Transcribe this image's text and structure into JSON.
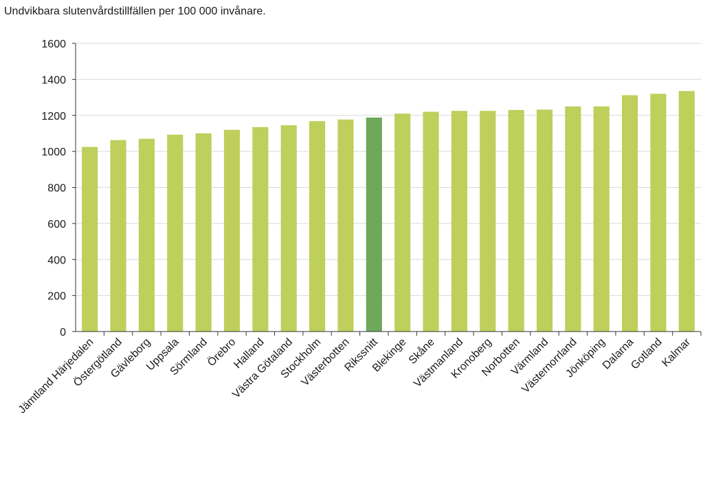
{
  "chart_data": {
    "type": "bar",
    "title": "Undvikbara slutenvårdstillfällen per 100 000 invånare.",
    "xlabel": "",
    "ylabel": "",
    "ylim": [
      0,
      1600
    ],
    "yticks": [
      0,
      200,
      400,
      600,
      800,
      1000,
      1200,
      1400,
      1600
    ],
    "grid": true,
    "categories": [
      "Jämtland Härjedalen",
      "Östergötland",
      "Gävleborg",
      "Uppsala",
      "Sörmland",
      "Örebro",
      "Halland",
      "Västra Götaland",
      "Stockholm",
      "Västerbotten",
      "Rikssnitt",
      "Blekinge",
      "Skåne",
      "Västmanland",
      "Kronoberg",
      "Norbotten",
      "Värmland",
      "Västernorrland",
      "Jönköping",
      "Dalarna",
      "Gotland",
      "Kalmar"
    ],
    "values": [
      1025,
      1063,
      1070,
      1093,
      1100,
      1120,
      1135,
      1145,
      1168,
      1177,
      1188,
      1210,
      1220,
      1225,
      1225,
      1230,
      1232,
      1250,
      1250,
      1312,
      1320,
      1335
    ],
    "colors": {
      "default": "#bfcf5c",
      "highlight": "#6fa85a",
      "highlight_category": "Rikssnitt",
      "grid": "#d9d9d9",
      "axis": "#333333"
    }
  }
}
